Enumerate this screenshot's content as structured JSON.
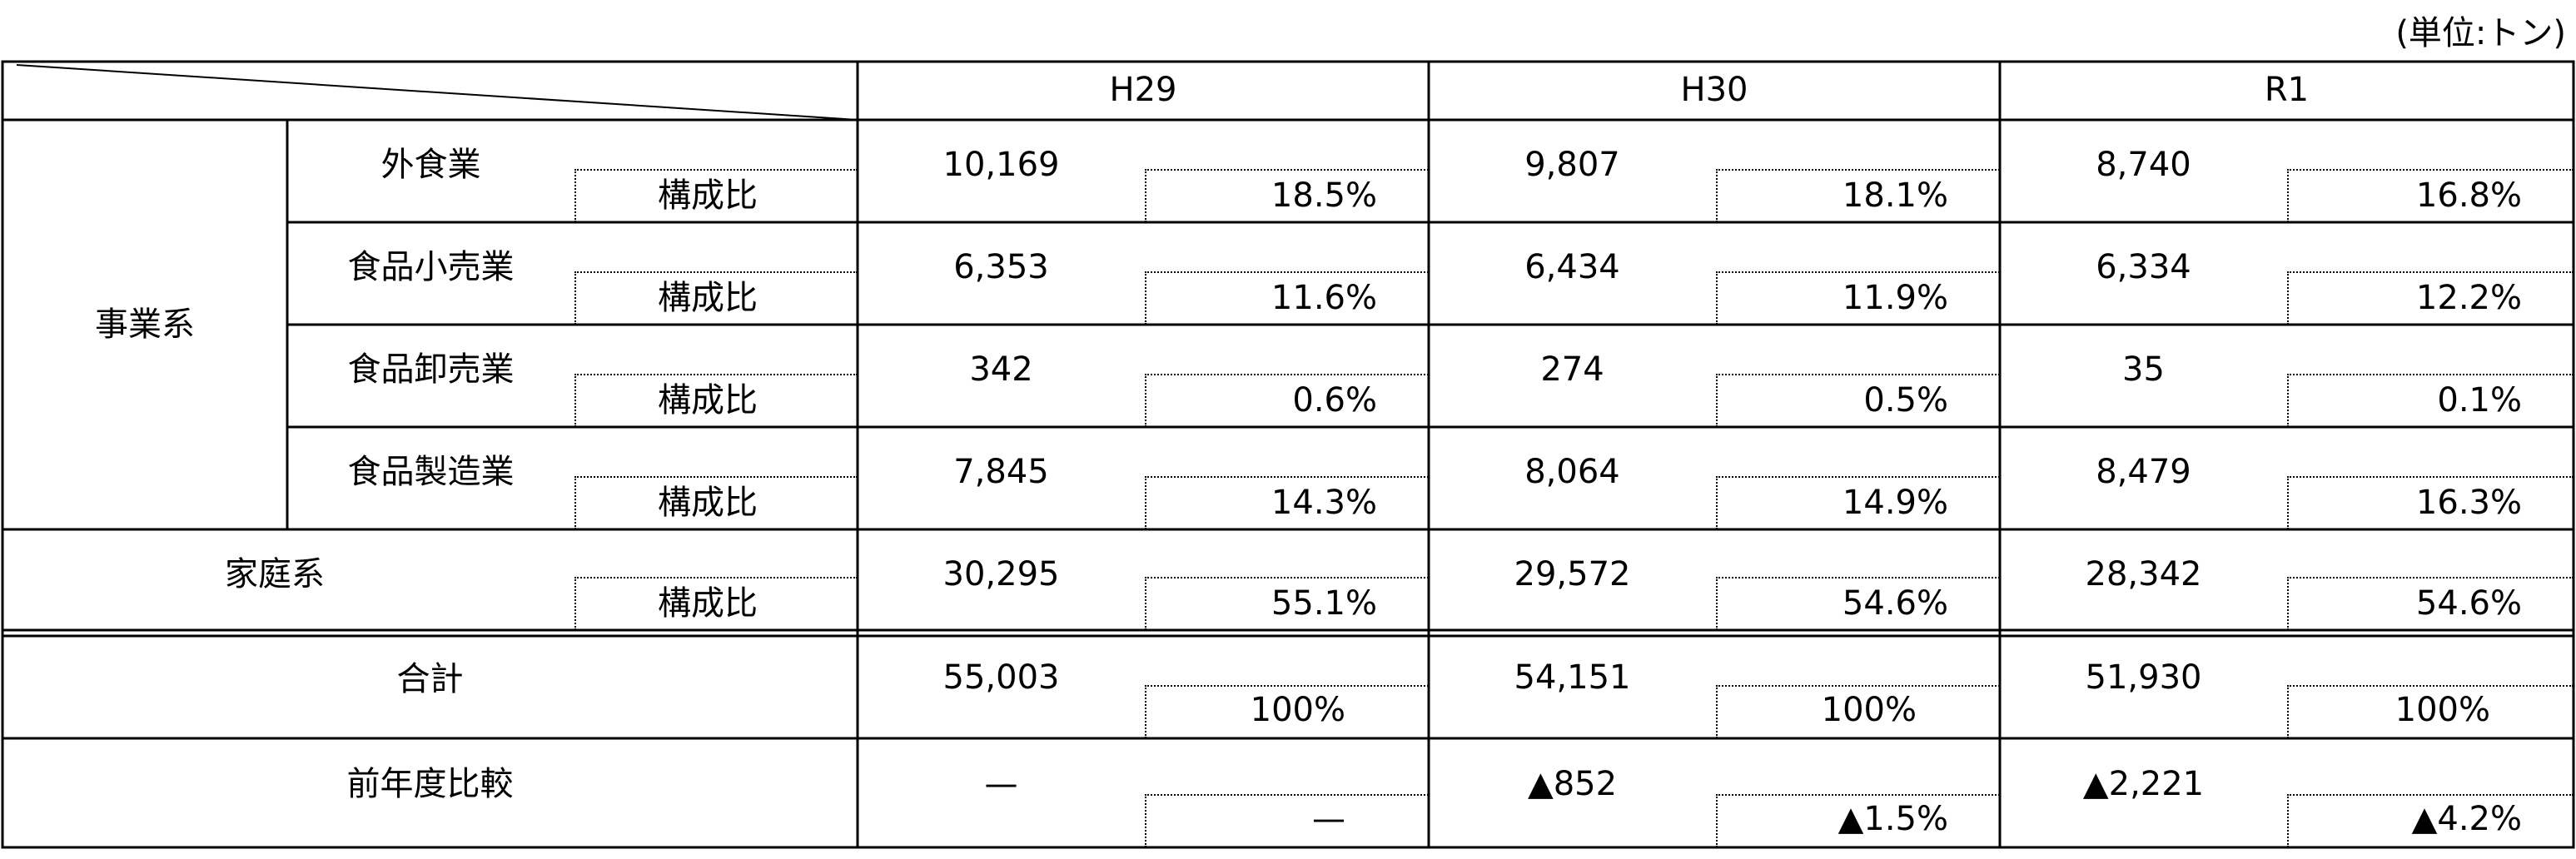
{
  "unit_label": "(単位:トン)",
  "columns": [
    "H29",
    "H30",
    "R1"
  ],
  "ratio_label": "構成比",
  "business_group": "事業系",
  "rows": [
    {
      "label": "外食業",
      "values": [
        "10,169",
        "9,807",
        "8,740"
      ],
      "ratios": [
        "18.5%",
        "18.1%",
        "16.8%"
      ]
    },
    {
      "label": "食品小売業",
      "values": [
        "6,353",
        "6,434",
        "6,334"
      ],
      "ratios": [
        "11.6%",
        "11.9%",
        "12.2%"
      ]
    },
    {
      "label": "食品卸売業",
      "values": [
        "342",
        "274",
        "35"
      ],
      "ratios": [
        "0.6%",
        "0.5%",
        "0.1%"
      ]
    },
    {
      "label": "食品製造業",
      "values": [
        "7,845",
        "8,064",
        "8,479"
      ],
      "ratios": [
        "14.3%",
        "14.9%",
        "16.3%"
      ]
    },
    {
      "label": "家庭系",
      "values": [
        "30,295",
        "29,572",
        "28,342"
      ],
      "ratios": [
        "55.1%",
        "54.6%",
        "54.6%"
      ]
    },
    {
      "label": "合計",
      "values": [
        "55,003",
        "54,151",
        "51,930"
      ],
      "ratios": [
        "100%",
        "100%",
        "100%"
      ]
    },
    {
      "label": "前年度比較",
      "values": [
        "—",
        "▲852",
        "▲2,221"
      ],
      "ratios": [
        "—",
        "▲1.5%",
        "▲4.2%"
      ]
    }
  ]
}
